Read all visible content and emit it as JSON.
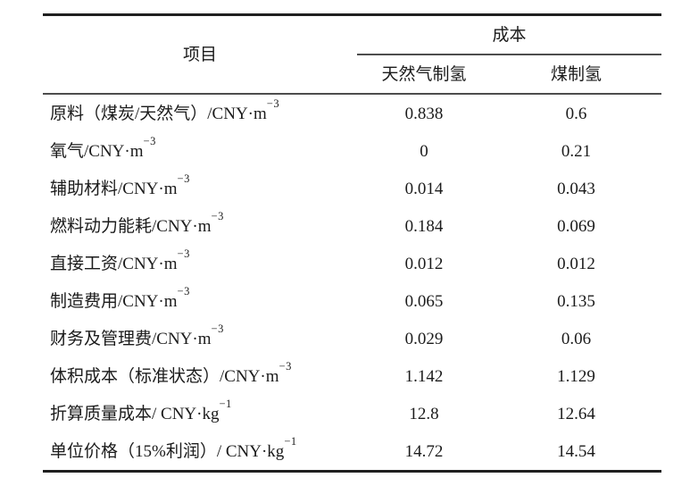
{
  "table": {
    "item_header": "项目",
    "cost_header": "成本",
    "col_headers": [
      "天然气制氢",
      "煤制氢"
    ],
    "rows": [
      {
        "label": "原料（煤炭/天然气）/CNY·m",
        "exp": "−3",
        "gas": "0.838",
        "coal": "0.6"
      },
      {
        "label": "氧气/CNY·m",
        "exp": "−3",
        "gas": "0",
        "coal": "0.21"
      },
      {
        "label": "辅助材料/CNY·m",
        "exp": "−3",
        "gas": "0.014",
        "coal": "0.043"
      },
      {
        "label": "燃料动力能耗/CNY·m",
        "exp": "−3",
        "gas": "0.184",
        "coal": "0.069"
      },
      {
        "label": "直接工资/CNY·m",
        "exp": "−3",
        "gas": "0.012",
        "coal": "0.012"
      },
      {
        "label": "制造费用/CNY·m",
        "exp": "−3",
        "gas": "0.065",
        "coal": "0.135"
      },
      {
        "label": "财务及管理费/CNY·m",
        "exp": "−3",
        "gas": "0.029",
        "coal": "0.06"
      },
      {
        "label": "体积成本（标准状态）/CNY·m",
        "exp": "−3",
        "gas": "1.142",
        "coal": "1.129"
      },
      {
        "label": "折算质量成本/ CNY·kg",
        "exp": "−1",
        "gas": "12.8",
        "coal": "12.64"
      },
      {
        "label": "单位价格（15%利润）/ CNY·kg",
        "exp": "−1",
        "gas": "14.72",
        "coal": "14.54"
      }
    ]
  },
  "colors": {
    "text": "#1b1b1b",
    "rule_thick": "#1f1f1f",
    "rule_thin": "#4d4d4d",
    "background": "#ffffff"
  }
}
